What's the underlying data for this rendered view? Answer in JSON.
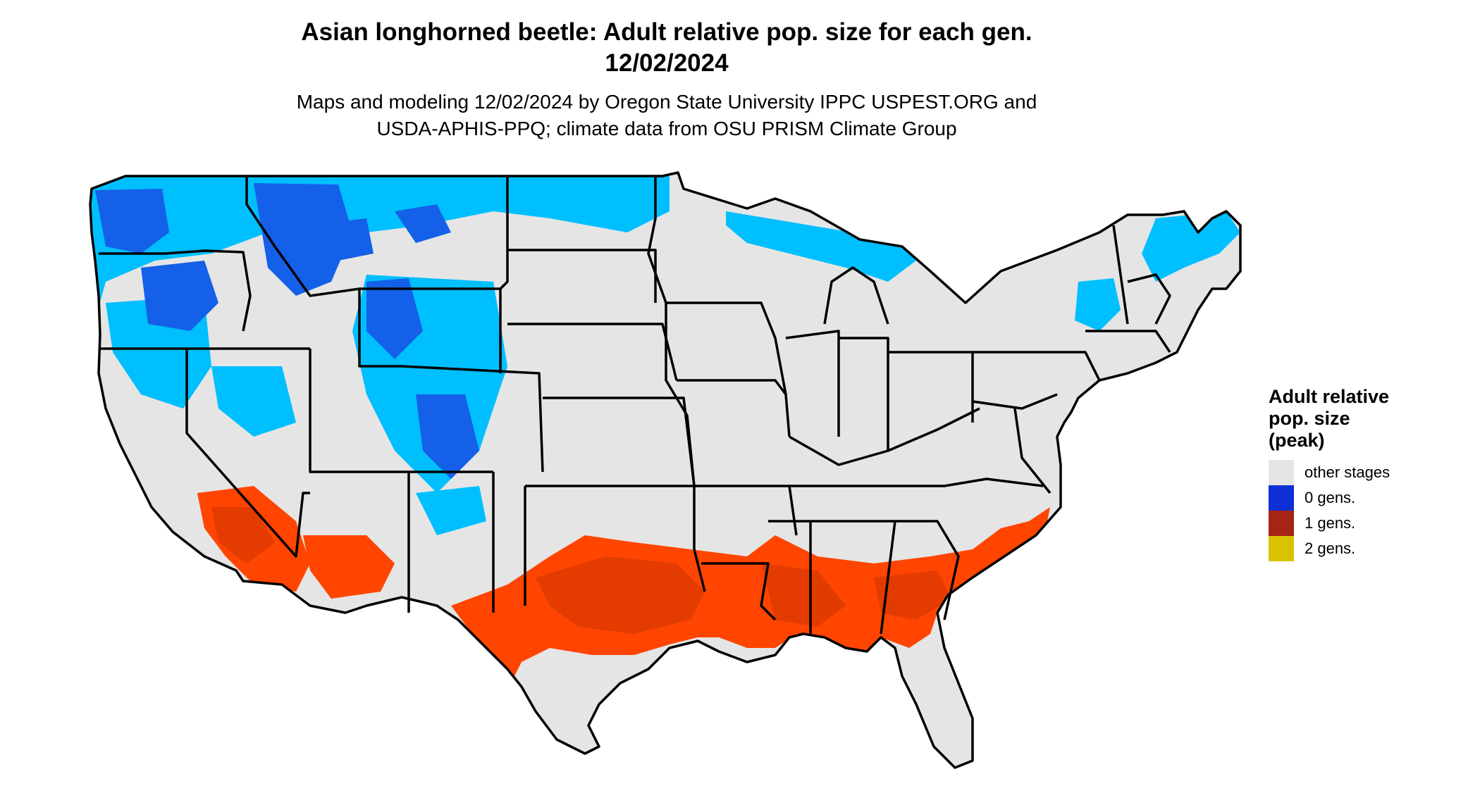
{
  "title": {
    "line1": "Asian longhorned beetle: Adult relative pop. size for each gen.",
    "line2": "12/02/2024"
  },
  "subtitle": {
    "line1": "Maps and modeling 12/02/2024 by Oregon State University IPPC USPEST.ORG and",
    "line2": "USDA-APHIS-PPQ; climate data from OSU PRISM Climate Group"
  },
  "legend": {
    "title_lines": [
      "Adult relative",
      "pop. size",
      "(peak)"
    ],
    "items": [
      {
        "label": "other stages",
        "color": "#e5e5e5"
      },
      {
        "label": "0 gens.",
        "color": "#0c2fd6"
      },
      {
        "label": "1 gens.",
        "color": "#a52413"
      },
      {
        "label": "2 gens.",
        "color": "#d9c300"
      }
    ]
  },
  "colors": {
    "map_fill": "#e5e5e5",
    "cold_light": "#00bfff",
    "cold_dark": "#1560e8",
    "warm": "#ff4500",
    "warm_dark": "#cc3300",
    "borders": "#000000"
  }
}
